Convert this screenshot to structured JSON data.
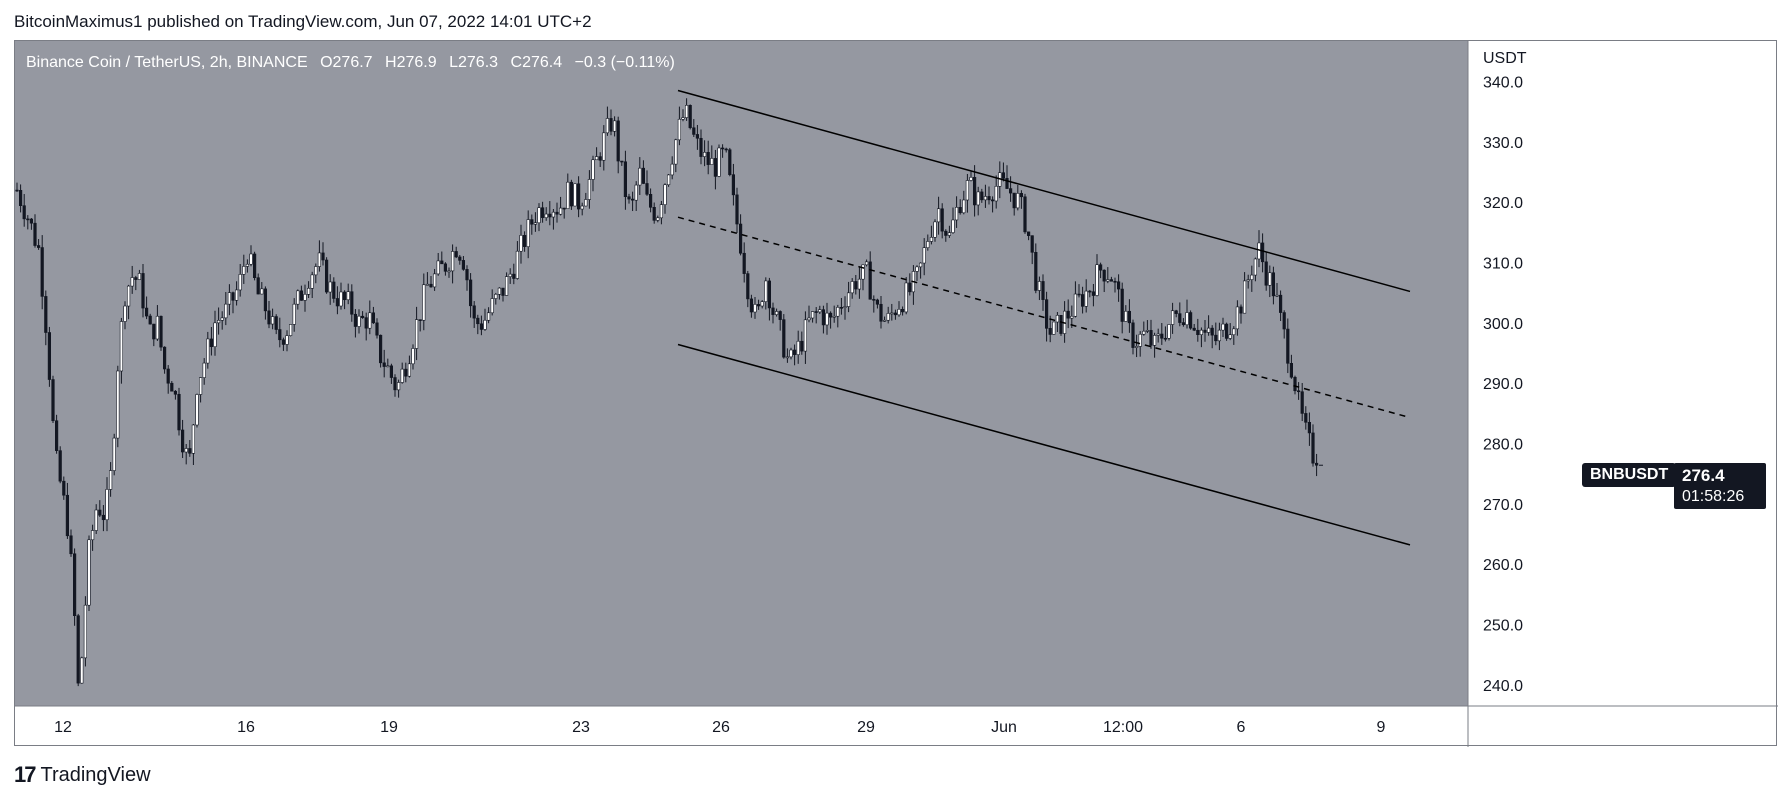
{
  "header": {
    "attribution": "BitcoinMaximus1 published on TradingView.com, Jun 07, 2022 14:01 UTC+2"
  },
  "legend": {
    "symbol": "Binance Coin / TetherUS, 2h, BINANCE",
    "open_label": "O",
    "open": "276.7",
    "high_label": "H",
    "high": "276.9",
    "low_label": "L",
    "low": "276.3",
    "close_label": "C",
    "close": "276.4",
    "change": "−0.3 (−0.11%)"
  },
  "currency": "USDT",
  "ticker_tag": "BNBUSDT",
  "last_price": "276.4",
  "countdown": "01:58:26",
  "footer": {
    "brand": "TradingView",
    "logo": "17"
  },
  "colors": {
    "plot_bg": "#9598a1",
    "axis_bg": "#ffffff",
    "candle": "#ffffff",
    "wick": "#131722",
    "trendline": "#000000"
  },
  "chart_data": {
    "type": "candlestick",
    "ylim": [
      236.5,
      346.7
    ],
    "yticks": [
      "240.0",
      "250.0",
      "260.0",
      "270.0",
      "280.0",
      "290.0",
      "300.0",
      "310.0",
      "320.0",
      "330.0",
      "340.0"
    ],
    "xlim": [
      0,
      1453
    ],
    "xticks": [
      {
        "label": "12",
        "pos": 48
      },
      {
        "label": "16",
        "pos": 231
      },
      {
        "label": "19",
        "pos": 374
      },
      {
        "label": "23",
        "pos": 566
      },
      {
        "label": "26",
        "pos": 706
      },
      {
        "label": "29",
        "pos": 851
      },
      {
        "label": "Jun",
        "pos": 989
      },
      {
        "label": "12:00",
        "pos": 1108
      },
      {
        "label": "6",
        "pos": 1226
      },
      {
        "label": "9",
        "pos": 1366
      }
    ],
    "price_path": [
      [
        0,
        322
      ],
      [
        10,
        318
      ],
      [
        22,
        312
      ],
      [
        30,
        298
      ],
      [
        38,
        278
      ],
      [
        45,
        272
      ],
      [
        52,
        265
      ],
      [
        58,
        250
      ],
      [
        62,
        237
      ],
      [
        66,
        248
      ],
      [
        72,
        262
      ],
      [
        80,
        270
      ],
      [
        88,
        268
      ],
      [
        95,
        276
      ],
      [
        100,
        292
      ],
      [
        108,
        305
      ],
      [
        116,
        308
      ],
      [
        124,
        306
      ],
      [
        132,
        298
      ],
      [
        140,
        300
      ],
      [
        148,
        292
      ],
      [
        156,
        290
      ],
      [
        164,
        282
      ],
      [
        172,
        276
      ],
      [
        180,
        290
      ],
      [
        190,
        295
      ],
      [
        198,
        300
      ],
      [
        210,
        302
      ],
      [
        222,
        306
      ],
      [
        230,
        312
      ],
      [
        240,
        305
      ],
      [
        250,
        302
      ],
      [
        260,
        297
      ],
      [
        270,
        299
      ],
      [
        282,
        304
      ],
      [
        292,
        308
      ],
      [
        302,
        310
      ],
      [
        312,
        306
      ],
      [
        322,
        304
      ],
      [
        332,
        303
      ],
      [
        342,
        300
      ],
      [
        352,
        301
      ],
      [
        362,
        295
      ],
      [
        372,
        292
      ],
      [
        380,
        289
      ],
      [
        390,
        294
      ],
      [
        400,
        300
      ],
      [
        410,
        306
      ],
      [
        420,
        308
      ],
      [
        430,
        310
      ],
      [
        440,
        313
      ],
      [
        448,
        310
      ],
      [
        456,
        300
      ],
      [
        466,
        300
      ],
      [
        476,
        303
      ],
      [
        488,
        306
      ],
      [
        498,
        310
      ],
      [
        508,
        314
      ],
      [
        518,
        318
      ],
      [
        530,
        320
      ],
      [
        542,
        319
      ],
      [
        552,
        322
      ],
      [
        562,
        320
      ],
      [
        574,
        324
      ],
      [
        586,
        330
      ],
      [
        596,
        334
      ],
      [
        602,
        327
      ],
      [
        608,
        322
      ],
      [
        614,
        318
      ],
      [
        622,
        325
      ],
      [
        630,
        320
      ],
      [
        640,
        318
      ],
      [
        650,
        325
      ],
      [
        660,
        331
      ],
      [
        668,
        335
      ],
      [
        678,
        330
      ],
      [
        688,
        327
      ],
      [
        698,
        326
      ],
      [
        708,
        328
      ],
      [
        716,
        320
      ],
      [
        724,
        313
      ],
      [
        732,
        305
      ],
      [
        740,
        300
      ],
      [
        748,
        308
      ],
      [
        756,
        302
      ],
      [
        764,
        298
      ],
      [
        772,
        293
      ],
      [
        782,
        296
      ],
      [
        792,
        300
      ],
      [
        802,
        302
      ],
      [
        814,
        300
      ],
      [
        826,
        304
      ],
      [
        838,
        307
      ],
      [
        850,
        308
      ],
      [
        860,
        302
      ],
      [
        870,
        300
      ],
      [
        880,
        303
      ],
      [
        892,
        305
      ],
      [
        902,
        308
      ],
      [
        912,
        315
      ],
      [
        922,
        319
      ],
      [
        932,
        314
      ],
      [
        942,
        320
      ],
      [
        952,
        323
      ],
      [
        962,
        320
      ],
      [
        972,
        322
      ],
      [
        982,
        323
      ],
      [
        992,
        322
      ],
      [
        1002,
        320
      ],
      [
        1010,
        316
      ],
      [
        1018,
        308
      ],
      [
        1026,
        302
      ],
      [
        1034,
        298
      ],
      [
        1044,
        300
      ],
      [
        1054,
        302
      ],
      [
        1064,
        304
      ],
      [
        1074,
        306
      ],
      [
        1084,
        309
      ],
      [
        1094,
        308
      ],
      [
        1102,
        304
      ],
      [
        1110,
        299
      ],
      [
        1118,
        297
      ],
      [
        1128,
        298
      ],
      [
        1138,
        296
      ],
      [
        1148,
        299
      ],
      [
        1158,
        301
      ],
      [
        1168,
        302
      ],
      [
        1178,
        300
      ],
      [
        1188,
        298
      ],
      [
        1198,
        297
      ],
      [
        1208,
        299
      ],
      [
        1218,
        301
      ],
      [
        1226,
        304
      ],
      [
        1234,
        309
      ],
      [
        1242,
        312
      ],
      [
        1250,
        308
      ],
      [
        1258,
        305
      ],
      [
        1264,
        300
      ],
      [
        1270,
        296
      ],
      [
        1276,
        292
      ],
      [
        1282,
        286
      ],
      [
        1288,
        282
      ],
      [
        1294,
        279
      ],
      [
        1300,
        276.4
      ]
    ],
    "trendlines": [
      {
        "style": "solid",
        "from": [
          663,
          338.5
        ],
        "to": [
          1395,
          305.2
        ]
      },
      {
        "style": "dashed",
        "from": [
          663,
          317.5
        ],
        "to": [
          1395,
          284.3
        ]
      },
      {
        "style": "solid",
        "from": [
          663,
          296.4
        ],
        "to": [
          1395,
          263.2
        ]
      }
    ],
    "last": 276.4
  }
}
